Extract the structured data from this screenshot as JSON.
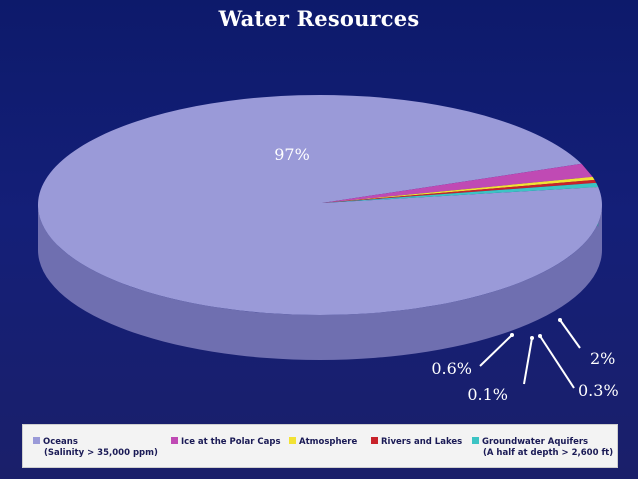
{
  "chart_data": {
    "type": "pie",
    "title": "Water Resources",
    "style": "3d",
    "slices": [
      {
        "name": "Oceans",
        "value": 97,
        "label": "97%",
        "color": "#9a9ad8",
        "side_color": "#6f6fb0",
        "legend_sub": "(Salinity > 35,000 ppm)"
      },
      {
        "name": "Ice at the Polar Caps",
        "value": 2,
        "label": "2%",
        "color": "#c04ab4",
        "side_color": "#8e2f86",
        "legend_sub": ""
      },
      {
        "name": "Atmosphere",
        "value": 0.3,
        "label": "0.3%",
        "color": "#f2e234",
        "side_color": "#c2b21e",
        "legend_sub": ""
      },
      {
        "name": "Rivers and Lakes",
        "value": 0.1,
        "label": "0.1%",
        "color": "#c8222a",
        "side_color": "#951a20",
        "legend_sub": ""
      },
      {
        "name": "Groundwater Aquifers",
        "value": 0.6,
        "label": "0.6%",
        "color": "#3cc4c4",
        "side_color": "#229292",
        "legend_sub": "(A half at depth > 2,600 ft)"
      }
    ],
    "legend_position": "bottom"
  },
  "colors": {
    "background": "#121d74",
    "title": "#ffffff",
    "label": "#ffffff"
  }
}
